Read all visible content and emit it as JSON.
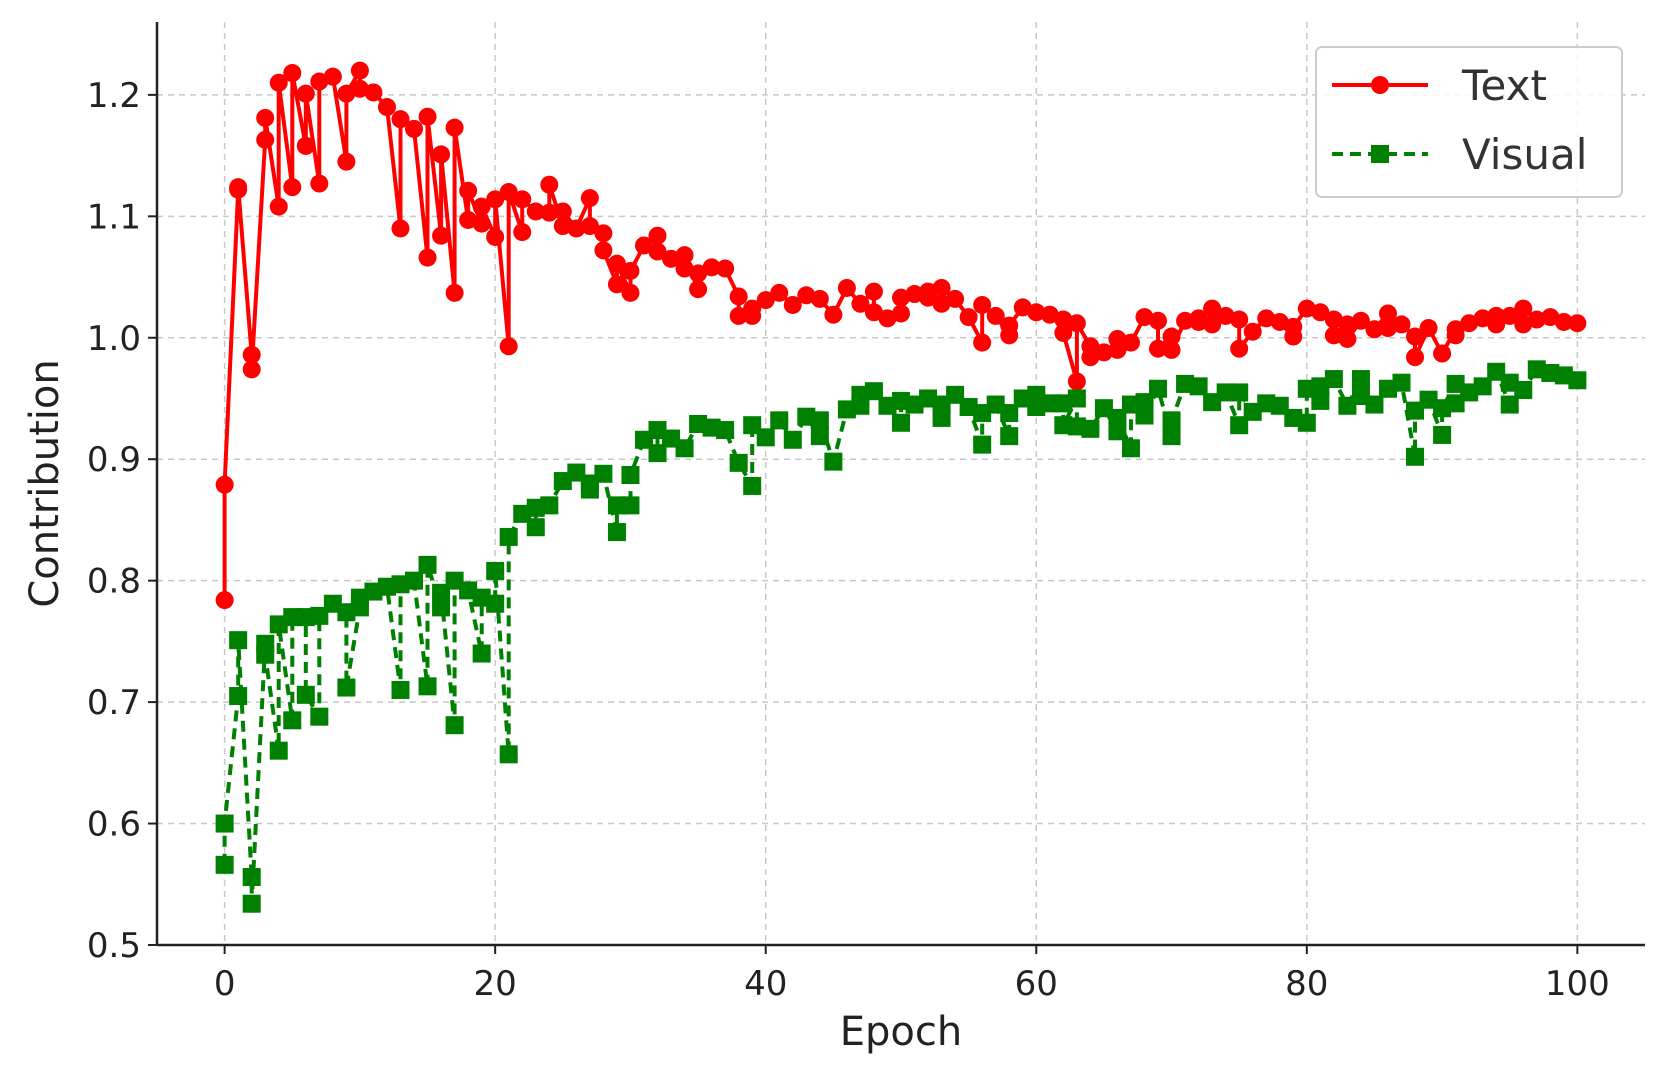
{
  "chart_data": {
    "type": "line",
    "title": "",
    "xlabel": "Epoch",
    "ylabel": "Contribution",
    "xlim": [
      -5,
      105
    ],
    "ylim": [
      0.5,
      1.26
    ],
    "xticks": [
      "0",
      "20",
      "40",
      "60",
      "80",
      "100"
    ],
    "yticks": [
      "0.5",
      "0.6",
      "0.7",
      "0.8",
      "0.9",
      "1.0",
      "1.1",
      "1.2"
    ],
    "grid": true,
    "legend_position": "top-right",
    "series": [
      {
        "name": "Text",
        "color": "#ff0000",
        "line_style": "solid",
        "marker": "circle",
        "points": [
          [
            0,
            0.784
          ],
          [
            0,
            0.879
          ],
          [
            1,
            1.122
          ],
          [
            1,
            1.124
          ],
          [
            2,
            0.986
          ],
          [
            2,
            0.974
          ],
          [
            3,
            1.163
          ],
          [
            3,
            1.181
          ],
          [
            4,
            1.108
          ],
          [
            4,
            1.21
          ],
          [
            5,
            1.124
          ],
          [
            5,
            1.218
          ],
          [
            6,
            1.158
          ],
          [
            6,
            1.201
          ],
          [
            7,
            1.127
          ],
          [
            7,
            1.211
          ],
          [
            8,
            1.215
          ],
          [
            9,
            1.145
          ],
          [
            9,
            1.201
          ],
          [
            10,
            1.22
          ],
          [
            10,
            1.205
          ],
          [
            11,
            1.202
          ],
          [
            12,
            1.19
          ],
          [
            13,
            1.09
          ],
          [
            13,
            1.18
          ],
          [
            14,
            1.172
          ],
          [
            15,
            1.066
          ],
          [
            15,
            1.182
          ],
          [
            16,
            1.084
          ],
          [
            16,
            1.151
          ],
          [
            17,
            1.037
          ],
          [
            17,
            1.173
          ],
          [
            18,
            1.097
          ],
          [
            18,
            1.121
          ],
          [
            19,
            1.094
          ],
          [
            19,
            1.108
          ],
          [
            20,
            1.083
          ],
          [
            20,
            1.114
          ],
          [
            21,
            0.993
          ],
          [
            21,
            1.12
          ],
          [
            22,
            1.087
          ],
          [
            22,
            1.114
          ],
          [
            23,
            1.104
          ],
          [
            24,
            1.103
          ],
          [
            24,
            1.126
          ],
          [
            25,
            1.092
          ],
          [
            25,
            1.104
          ],
          [
            26,
            1.09
          ],
          [
            27,
            1.115
          ],
          [
            27,
            1.092
          ],
          [
            28,
            1.086
          ],
          [
            28,
            1.072
          ],
          [
            29,
            1.044
          ],
          [
            29,
            1.061
          ],
          [
            30,
            1.037
          ],
          [
            30,
            1.055
          ],
          [
            31,
            1.076
          ],
          [
            32,
            1.084
          ],
          [
            32,
            1.071
          ],
          [
            33,
            1.065
          ],
          [
            34,
            1.057
          ],
          [
            34,
            1.068
          ],
          [
            35,
            1.04
          ],
          [
            35,
            1.053
          ],
          [
            36,
            1.058
          ],
          [
            37,
            1.057
          ],
          [
            38,
            1.034
          ],
          [
            38,
            1.018
          ],
          [
            39,
            1.018
          ],
          [
            39,
            1.024
          ],
          [
            40,
            1.031
          ],
          [
            41,
            1.037
          ],
          [
            42,
            1.027
          ],
          [
            43,
            1.035
          ],
          [
            44,
            1.032
          ],
          [
            45,
            1.019
          ],
          [
            46,
            1.041
          ],
          [
            47,
            1.028
          ],
          [
            48,
            1.038
          ],
          [
            48,
            1.021
          ],
          [
            49,
            1.016
          ],
          [
            50,
            1.02
          ],
          [
            50,
            1.033
          ],
          [
            51,
            1.036
          ],
          [
            52,
            1.033
          ],
          [
            52,
            1.038
          ],
          [
            53,
            1.028
          ],
          [
            53,
            1.041
          ],
          [
            54,
            1.032
          ],
          [
            55,
            1.017
          ],
          [
            56,
            0.996
          ],
          [
            56,
            1.027
          ],
          [
            57,
            1.018
          ],
          [
            58,
            1.002
          ],
          [
            58,
            1.01
          ],
          [
            59,
            1.025
          ],
          [
            60,
            1.021
          ],
          [
            61,
            1.019
          ],
          [
            62,
            1.015
          ],
          [
            62,
            1.004
          ],
          [
            63,
            0.964
          ],
          [
            63,
            1.012
          ],
          [
            64,
            0.993
          ],
          [
            64,
            0.984
          ],
          [
            65,
            0.988
          ],
          [
            66,
            0.99
          ],
          [
            66,
            0.999
          ],
          [
            67,
            0.996
          ],
          [
            68,
            1.017
          ],
          [
            69,
            1.014
          ],
          [
            69,
            0.991
          ],
          [
            70,
            1.001
          ],
          [
            70,
            0.99
          ],
          [
            71,
            1.014
          ],
          [
            72,
            1.013
          ],
          [
            72,
            1.016
          ],
          [
            73,
            1.011
          ],
          [
            73,
            1.024
          ],
          [
            74,
            1.018
          ],
          [
            75,
            1.015
          ],
          [
            75,
            0.991
          ],
          [
            76,
            1.005
          ],
          [
            77,
            1.016
          ],
          [
            78,
            1.013
          ],
          [
            79,
            1.001
          ],
          [
            79,
            1.009
          ],
          [
            80,
            1.024
          ],
          [
            81,
            1.021
          ],
          [
            82,
            1.015
          ],
          [
            82,
            1.002
          ],
          [
            83,
            1.011
          ],
          [
            83,
            0.999
          ],
          [
            84,
            1.014
          ],
          [
            85,
            1.007
          ],
          [
            86,
            1.02
          ],
          [
            86,
            1.008
          ],
          [
            87,
            1.011
          ],
          [
            88,
            1.001
          ],
          [
            88,
            0.984
          ],
          [
            89,
            1.008
          ],
          [
            90,
            0.987
          ],
          [
            91,
            1.007
          ],
          [
            91,
            1.002
          ],
          [
            92,
            1.012
          ],
          [
            93,
            1.016
          ],
          [
            94,
            1.018
          ],
          [
            94,
            1.011
          ],
          [
            95,
            1.018
          ],
          [
            96,
            1.024
          ],
          [
            96,
            1.011
          ],
          [
            97,
            1.015
          ],
          [
            98,
            1.017
          ],
          [
            99,
            1.013
          ],
          [
            100,
            1.012
          ]
        ]
      },
      {
        "name": "Visual",
        "color": "#008000",
        "line_style": "dashed",
        "marker": "square",
        "points": [
          [
            0,
            0.566
          ],
          [
            0,
            0.6
          ],
          [
            1,
            0.705
          ],
          [
            1,
            0.751
          ],
          [
            2,
            0.556
          ],
          [
            2,
            0.534
          ],
          [
            3,
            0.748
          ],
          [
            3,
            0.739
          ],
          [
            4,
            0.66
          ],
          [
            4,
            0.764
          ],
          [
            5,
            0.685
          ],
          [
            5,
            0.77
          ],
          [
            6,
            0.77
          ],
          [
            6,
            0.706
          ],
          [
            7,
            0.688
          ],
          [
            7,
            0.771
          ],
          [
            8,
            0.781
          ],
          [
            9,
            0.774
          ],
          [
            9,
            0.712
          ],
          [
            10,
            0.778
          ],
          [
            10,
            0.786
          ],
          [
            11,
            0.791
          ],
          [
            12,
            0.795
          ],
          [
            13,
            0.71
          ],
          [
            13,
            0.797
          ],
          [
            14,
            0.8
          ],
          [
            15,
            0.713
          ],
          [
            15,
            0.813
          ],
          [
            16,
            0.778
          ],
          [
            16,
            0.79
          ],
          [
            17,
            0.681
          ],
          [
            17,
            0.8
          ],
          [
            18,
            0.792
          ],
          [
            19,
            0.74
          ],
          [
            19,
            0.786
          ],
          [
            20,
            0.781
          ],
          [
            20,
            0.808
          ],
          [
            21,
            0.657
          ],
          [
            21,
            0.836
          ],
          [
            22,
            0.855
          ],
          [
            23,
            0.844
          ],
          [
            23,
            0.86
          ],
          [
            24,
            0.862
          ],
          [
            25,
            0.882
          ],
          [
            26,
            0.889
          ],
          [
            27,
            0.875
          ],
          [
            27,
            0.88
          ],
          [
            28,
            0.888
          ],
          [
            29,
            0.84
          ],
          [
            29,
            0.862
          ],
          [
            30,
            0.862
          ],
          [
            30,
            0.887
          ],
          [
            31,
            0.916
          ],
          [
            32,
            0.905
          ],
          [
            32,
            0.924
          ],
          [
            33,
            0.917
          ],
          [
            34,
            0.909
          ],
          [
            35,
            0.929
          ],
          [
            36,
            0.926
          ],
          [
            37,
            0.924
          ],
          [
            38,
            0.897
          ],
          [
            39,
            0.878
          ],
          [
            39,
            0.928
          ],
          [
            40,
            0.918
          ],
          [
            41,
            0.932
          ],
          [
            42,
            0.916
          ],
          [
            43,
            0.935
          ],
          [
            44,
            0.919
          ],
          [
            44,
            0.932
          ],
          [
            45,
            0.898
          ],
          [
            46,
            0.941
          ],
          [
            47,
            0.953
          ],
          [
            47,
            0.944
          ],
          [
            48,
            0.956
          ],
          [
            49,
            0.944
          ],
          [
            50,
            0.93
          ],
          [
            50,
            0.948
          ],
          [
            51,
            0.945
          ],
          [
            52,
            0.95
          ],
          [
            53,
            0.934
          ],
          [
            53,
            0.945
          ],
          [
            54,
            0.953
          ],
          [
            55,
            0.943
          ],
          [
            56,
            0.912
          ],
          [
            56,
            0.938
          ],
          [
            57,
            0.945
          ],
          [
            58,
            0.919
          ],
          [
            58,
            0.938
          ],
          [
            59,
            0.95
          ],
          [
            60,
            0.953
          ],
          [
            60,
            0.943
          ],
          [
            61,
            0.946
          ],
          [
            62,
            0.946
          ],
          [
            62,
            0.928
          ],
          [
            63,
            0.95
          ],
          [
            63,
            0.927
          ],
          [
            64,
            0.925
          ],
          [
            65,
            0.942
          ],
          [
            66,
            0.923
          ],
          [
            66,
            0.934
          ],
          [
            67,
            0.909
          ],
          [
            67,
            0.945
          ],
          [
            68,
            0.947
          ],
          [
            68,
            0.936
          ],
          [
            69,
            0.958
          ],
          [
            70,
            0.919
          ],
          [
            70,
            0.932
          ],
          [
            71,
            0.962
          ],
          [
            72,
            0.96
          ],
          [
            73,
            0.947
          ],
          [
            74,
            0.955
          ],
          [
            75,
            0.928
          ],
          [
            75,
            0.955
          ],
          [
            76,
            0.939
          ],
          [
            77,
            0.946
          ],
          [
            78,
            0.944
          ],
          [
            79,
            0.934
          ],
          [
            80,
            0.93
          ],
          [
            80,
            0.958
          ],
          [
            81,
            0.948
          ],
          [
            81,
            0.96
          ],
          [
            82,
            0.966
          ],
          [
            83,
            0.944
          ],
          [
            84,
            0.966
          ],
          [
            84,
            0.952
          ],
          [
            85,
            0.945
          ],
          [
            86,
            0.958
          ],
          [
            87,
            0.963
          ],
          [
            88,
            0.902
          ],
          [
            88,
            0.94
          ],
          [
            89,
            0.949
          ],
          [
            90,
            0.92
          ],
          [
            90,
            0.942
          ],
          [
            91,
            0.962
          ],
          [
            91,
            0.946
          ],
          [
            92,
            0.955
          ],
          [
            93,
            0.96
          ],
          [
            94,
            0.972
          ],
          [
            95,
            0.945
          ],
          [
            95,
            0.963
          ],
          [
            96,
            0.957
          ],
          [
            97,
            0.974
          ],
          [
            98,
            0.971
          ],
          [
            99,
            0.969
          ],
          [
            100,
            0.965
          ]
        ]
      }
    ]
  }
}
